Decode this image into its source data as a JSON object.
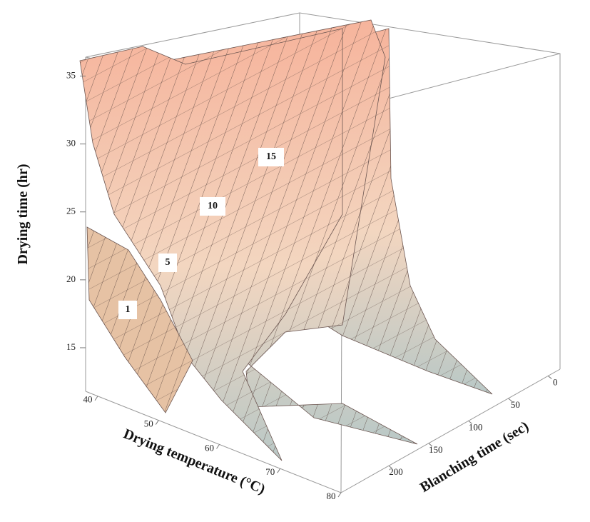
{
  "chart_data": {
    "type": "surface3d",
    "xlabel": "Drying temperature (°C)",
    "ylabel": "Blanching time (sec)",
    "zlabel": "Drying time (hr)",
    "xlim": [
      38,
      80
    ],
    "xticks": [
      40,
      50,
      60,
      70,
      80
    ],
    "ylim": [
      -15,
      260
    ],
    "yticks": [
      0,
      50,
      100,
      150,
      200
    ],
    "zlim": [
      13,
      36.5
    ],
    "zticks": [
      15,
      20,
      25,
      30,
      35
    ],
    "surface_labels": [
      "1",
      "5",
      "10",
      "15"
    ]
  }
}
